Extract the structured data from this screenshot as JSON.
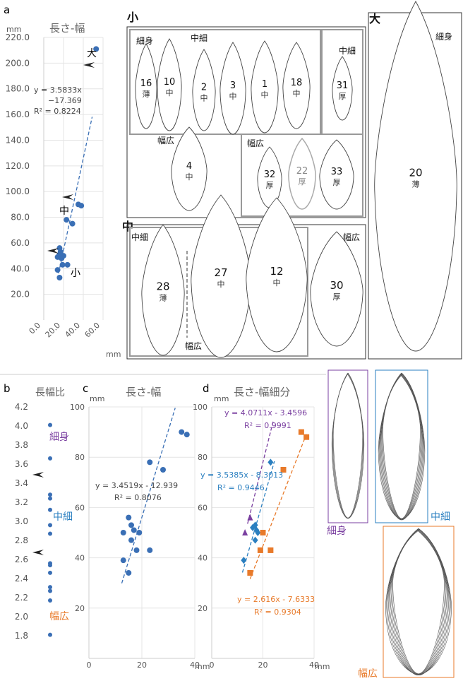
{
  "panel_letters": {
    "a": "a",
    "b": "b",
    "c": "c",
    "d": "d"
  },
  "colors": {
    "blue": "#3a6fb5",
    "purple": "#7a3fa0",
    "orange": "#e87a2a",
    "teal": "#2a7fc0",
    "frame": "#999999"
  },
  "unit": "mm",
  "chart_data": [
    {
      "id": "a",
      "type": "scatter",
      "title": "長さ-幅",
      "xlabel": "mm",
      "ylabel": "mm",
      "xlim": [
        0,
        60
      ],
      "ylim": [
        0,
        220
      ],
      "xticks": [
        "0.0",
        "20.0",
        "40.0",
        "60.0"
      ],
      "yticks": [
        "20.0",
        "40.0",
        "60.0",
        "80.0",
        "100.0",
        "120.0",
        "140.0",
        "160.0",
        "180.0",
        "200.0",
        "220.0"
      ],
      "points": [
        {
          "x": 14,
          "y": 39
        },
        {
          "x": 16,
          "y": 33
        },
        {
          "x": 14,
          "y": 49
        },
        {
          "x": 16,
          "y": 51
        },
        {
          "x": 16,
          "y": 56
        },
        {
          "x": 17,
          "y": 53
        },
        {
          "x": 18,
          "y": 48
        },
        {
          "x": 20,
          "y": 50
        },
        {
          "x": 19,
          "y": 43
        },
        {
          "x": 24,
          "y": 43
        },
        {
          "x": 23,
          "y": 78
        },
        {
          "x": 29,
          "y": 75
        },
        {
          "x": 35,
          "y": 90
        },
        {
          "x": 38,
          "y": 89
        },
        {
          "x": 53,
          "y": 211
        }
      ],
      "trend": {
        "x1": 15,
        "x2": 49
      },
      "equation": [
        "y = 3.5833x",
        "−17.369",
        "R² = 0.8224"
      ],
      "group_labels": {
        "large": "大",
        "medium": "中",
        "small": "小"
      }
    },
    {
      "id": "b",
      "type": "scatter",
      "title": "長幅比",
      "ylim": [
        1.8,
        4.2
      ],
      "yticks": [
        "4.2",
        "4.0",
        "3.8",
        "3.6",
        "3.4",
        "3.2",
        "3.0",
        "2.8",
        "2.6",
        "2.4",
        "2.2",
        "2.0",
        "1.8"
      ],
      "values": [
        4.01,
        3.66,
        3.28,
        3.24,
        3.12,
        2.96,
        2.87,
        2.56,
        2.54,
        2.46,
        2.31,
        2.27,
        2.17,
        1.81
      ],
      "group_labels": {
        "slim": "細身",
        "medium": "中細",
        "wide": "幅広"
      }
    },
    {
      "id": "c",
      "type": "scatter",
      "title": "長さ-幅",
      "xlabel": "mm",
      "ylabel": "mm",
      "xlim": [
        0,
        40
      ],
      "ylim": [
        0,
        100
      ],
      "xticks": [
        "0",
        "20",
        "40"
      ],
      "yticks": [
        "20",
        "40",
        "60",
        "80",
        "100"
      ],
      "points": [
        {
          "x": 13,
          "y": 39
        },
        {
          "x": 15,
          "y": 34
        },
        {
          "x": 13,
          "y": 50
        },
        {
          "x": 15,
          "y": 56
        },
        {
          "x": 16,
          "y": 53
        },
        {
          "x": 17,
          "y": 51
        },
        {
          "x": 16,
          "y": 47
        },
        {
          "x": 19,
          "y": 50
        },
        {
          "x": 18,
          "y": 43
        },
        {
          "x": 23,
          "y": 43
        },
        {
          "x": 23,
          "y": 78
        },
        {
          "x": 28,
          "y": 75
        },
        {
          "x": 35,
          "y": 90
        },
        {
          "x": 37,
          "y": 89
        }
      ],
      "trend": {
        "slope": 3.4519,
        "intercept": -12.939,
        "x1": 12.4,
        "x2": 32.6
      },
      "equation": [
        "y = 3.4519x  - 12.939",
        "R² = 0.8076"
      ]
    },
    {
      "id": "d",
      "type": "scatter",
      "title": "長さ-幅細分",
      "xlabel": "mm",
      "ylabel": "mm",
      "xlim": [
        0,
        40
      ],
      "ylim": [
        0,
        100
      ],
      "xticks": [
        "0",
        "20",
        "40"
      ],
      "yticks": [
        "20",
        "40",
        "60",
        "80",
        "100"
      ],
      "series": [
        {
          "color": "#7a3fa0",
          "marker": "triangle",
          "points": [
            {
              "x": 13,
              "y": 50
            },
            {
              "x": 15,
              "y": 56
            }
          ],
          "trend": {
            "slope": 4.0711,
            "intercept": -3.4596,
            "x1": 14,
            "x2": 24
          },
          "equation": [
            "y = 4.0711x  - 3.4596",
            "R² = 0.9991"
          ]
        },
        {
          "color": "#2a7fc0",
          "marker": "diamond",
          "points": [
            {
              "x": 12.5,
              "y": 39
            },
            {
              "x": 16,
              "y": 52
            },
            {
              "x": 17,
              "y": 53
            },
            {
              "x": 17.5,
              "y": 51
            },
            {
              "x": 17,
              "y": 47
            },
            {
              "x": 18,
              "y": 50
            },
            {
              "x": 23,
              "y": 78
            }
          ],
          "trend": {
            "slope": 3.5385,
            "intercept": -8.3013,
            "x1": 12,
            "x2": 24.5
          },
          "equation": [
            "y = 3.5385x  - 8.3013",
            "R² = 0.9446"
          ]
        },
        {
          "color": "#e87a2a",
          "marker": "square",
          "points": [
            {
              "x": 15,
              "y": 34
            },
            {
              "x": 19,
              "y": 43
            },
            {
              "x": 20,
              "y": 50
            },
            {
              "x": 23,
              "y": 43
            },
            {
              "x": 28,
              "y": 75
            },
            {
              "x": 35,
              "y": 90
            },
            {
              "x": 37,
              "y": 88
            }
          ],
          "trend": {
            "slope": 2.616,
            "intercept": -7.6333,
            "x1": 15,
            "x2": 37
          },
          "equation": [
            "y = 2.616x  - 7.6333",
            "R² = 0.9304"
          ]
        }
      ]
    }
  ],
  "drawings": {
    "group_small": "小",
    "group_medium": "中",
    "group_large": "大",
    "label_slim": "細身",
    "label_medium_slim": "中細",
    "label_wide": "幅広",
    "items": [
      {
        "num": "16",
        "thk": "薄"
      },
      {
        "num": "10",
        "thk": "中"
      },
      {
        "num": "2",
        "thk": "中"
      },
      {
        "num": "3",
        "thk": "中"
      },
      {
        "num": "1",
        "thk": "中"
      },
      {
        "num": "18",
        "thk": "中"
      },
      {
        "num": "31",
        "thk": "厚"
      },
      {
        "num": "4",
        "thk": "中"
      },
      {
        "num": "32",
        "thk": "厚"
      },
      {
        "num": "22",
        "thk": "厚"
      },
      {
        "num": "33",
        "thk": "厚"
      },
      {
        "num": "20",
        "thk": "薄"
      },
      {
        "num": "28",
        "thk": "薄"
      },
      {
        "num": "27",
        "thk": "中"
      },
      {
        "num": "12",
        "thk": "中"
      },
      {
        "num": "30",
        "thk": "厚"
      }
    ]
  },
  "outlines": {
    "slim": "細身",
    "medium": "中細",
    "wide": "幅広"
  }
}
